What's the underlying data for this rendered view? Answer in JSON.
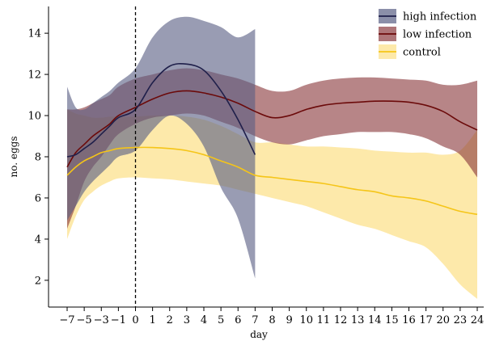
{
  "chart_data": {
    "type": "line",
    "xlabel": "day",
    "ylabel": "no. eggs",
    "xlim": [
      -8,
      24.5
    ],
    "ylim": [
      0.7,
      15.3
    ],
    "x_ticks": [
      -7,
      -5,
      -3,
      -1,
      0,
      1,
      2,
      3,
      4,
      5,
      6,
      7,
      8,
      9,
      10,
      11,
      12,
      13,
      14,
      15,
      16,
      17,
      20,
      23,
      24
    ],
    "x_tick_labels": [
      "−7",
      "−5",
      "−3",
      "−1",
      "0",
      "1",
      "2",
      "3",
      "4",
      "5",
      "6",
      "7",
      "8",
      "9",
      "10",
      "11",
      "12",
      "13",
      "14",
      "15",
      "16",
      "17",
      "20",
      "23",
      "24"
    ],
    "y_ticks": [
      2,
      4,
      6,
      8,
      10,
      12,
      14
    ],
    "y_tick_labels": [
      "2",
      "4",
      "6",
      "8",
      "10",
      "12",
      "14"
    ],
    "reference_line": {
      "x": 0,
      "style": "dashed"
    },
    "legend_position": "top-right",
    "series": [
      {
        "name": "high infection",
        "color": "#1f1f4a",
        "band_color": "#5a5f85",
        "x": [
          -7,
          -6,
          -5,
          -4,
          -3,
          -2,
          -1,
          0,
          1,
          2,
          3,
          4,
          5,
          6,
          7
        ],
        "y": [
          8.0,
          8.1,
          8.4,
          8.7,
          9.1,
          9.5,
          9.9,
          10.3,
          11.6,
          12.4,
          12.5,
          12.2,
          11.2,
          9.8,
          8.1
        ],
        "lower": [
          4.9,
          5.6,
          6.3,
          6.8,
          7.2,
          7.6,
          8.0,
          8.3,
          9.3,
          10.0,
          9.6,
          8.5,
          6.5,
          5.0,
          2.1
        ],
        "upper": [
          11.4,
          10.4,
          10.3,
          10.6,
          10.9,
          11.2,
          11.6,
          12.3,
          13.8,
          14.6,
          14.8,
          14.6,
          14.3,
          13.8,
          14.2
        ]
      },
      {
        "name": "low infection",
        "color": "#6b0a0a",
        "band_color": "#8b3a3e",
        "x": [
          -7,
          -6,
          -5,
          -4,
          -3,
          -2,
          -1,
          0,
          1,
          2,
          3,
          4,
          5,
          6,
          7,
          8,
          9,
          10,
          11,
          12,
          13,
          14,
          15,
          16,
          17,
          20,
          23,
          24
        ],
        "y": [
          7.5,
          8.2,
          8.6,
          9.0,
          9.3,
          9.6,
          10.0,
          10.4,
          10.8,
          11.1,
          11.2,
          11.1,
          10.9,
          10.6,
          10.2,
          9.9,
          10.0,
          10.3,
          10.5,
          10.6,
          10.65,
          10.7,
          10.7,
          10.65,
          10.5,
          10.2,
          9.7,
          9.3
        ],
        "lower": [
          4.5,
          5.6,
          6.8,
          7.5,
          8.0,
          8.6,
          9.1,
          9.6,
          9.9,
          10.0,
          10.1,
          10.0,
          9.7,
          9.4,
          9.0,
          8.7,
          8.6,
          8.8,
          9.0,
          9.1,
          9.2,
          9.2,
          9.2,
          9.1,
          8.9,
          8.5,
          8.1,
          7.0
        ],
        "upper": [
          10.3,
          10.3,
          10.4,
          10.6,
          10.8,
          11.0,
          11.4,
          11.8,
          12.0,
          12.2,
          12.3,
          12.2,
          12.0,
          11.8,
          11.5,
          11.2,
          11.2,
          11.5,
          11.7,
          11.8,
          11.85,
          11.85,
          11.8,
          11.75,
          11.7,
          11.5,
          11.5,
          11.7
        ]
      },
      {
        "name": "control",
        "color": "#f5c518",
        "band_color": "#fde8a5",
        "x": [
          -7,
          -6,
          -5,
          -4,
          -3,
          -2,
          -1,
          0,
          1,
          2,
          3,
          4,
          5,
          6,
          7,
          8,
          9,
          10,
          11,
          12,
          13,
          14,
          15,
          16,
          17,
          20,
          23,
          24
        ],
        "y": [
          7.1,
          7.5,
          7.8,
          8.0,
          8.2,
          8.3,
          8.4,
          8.45,
          8.45,
          8.4,
          8.3,
          8.1,
          7.8,
          7.5,
          7.1,
          7.0,
          6.9,
          6.8,
          6.7,
          6.55,
          6.4,
          6.3,
          6.1,
          6.0,
          5.85,
          5.6,
          5.35,
          5.2
        ],
        "lower": [
          4.0,
          5.1,
          5.9,
          6.3,
          6.6,
          6.8,
          6.95,
          7.0,
          6.95,
          6.9,
          6.8,
          6.7,
          6.6,
          6.4,
          6.2,
          6.0,
          5.8,
          5.6,
          5.3,
          5.0,
          4.7,
          4.5,
          4.2,
          3.9,
          3.6,
          2.8,
          1.8,
          1.1
        ],
        "upper": [
          10.3,
          10.1,
          10.0,
          9.9,
          9.9,
          9.95,
          9.95,
          9.95,
          10.0,
          10.0,
          9.95,
          9.8,
          9.5,
          9.1,
          8.7,
          8.7,
          8.6,
          8.5,
          8.5,
          8.45,
          8.4,
          8.3,
          8.25,
          8.2,
          8.2,
          8.1,
          8.3,
          9.3
        ]
      }
    ]
  }
}
